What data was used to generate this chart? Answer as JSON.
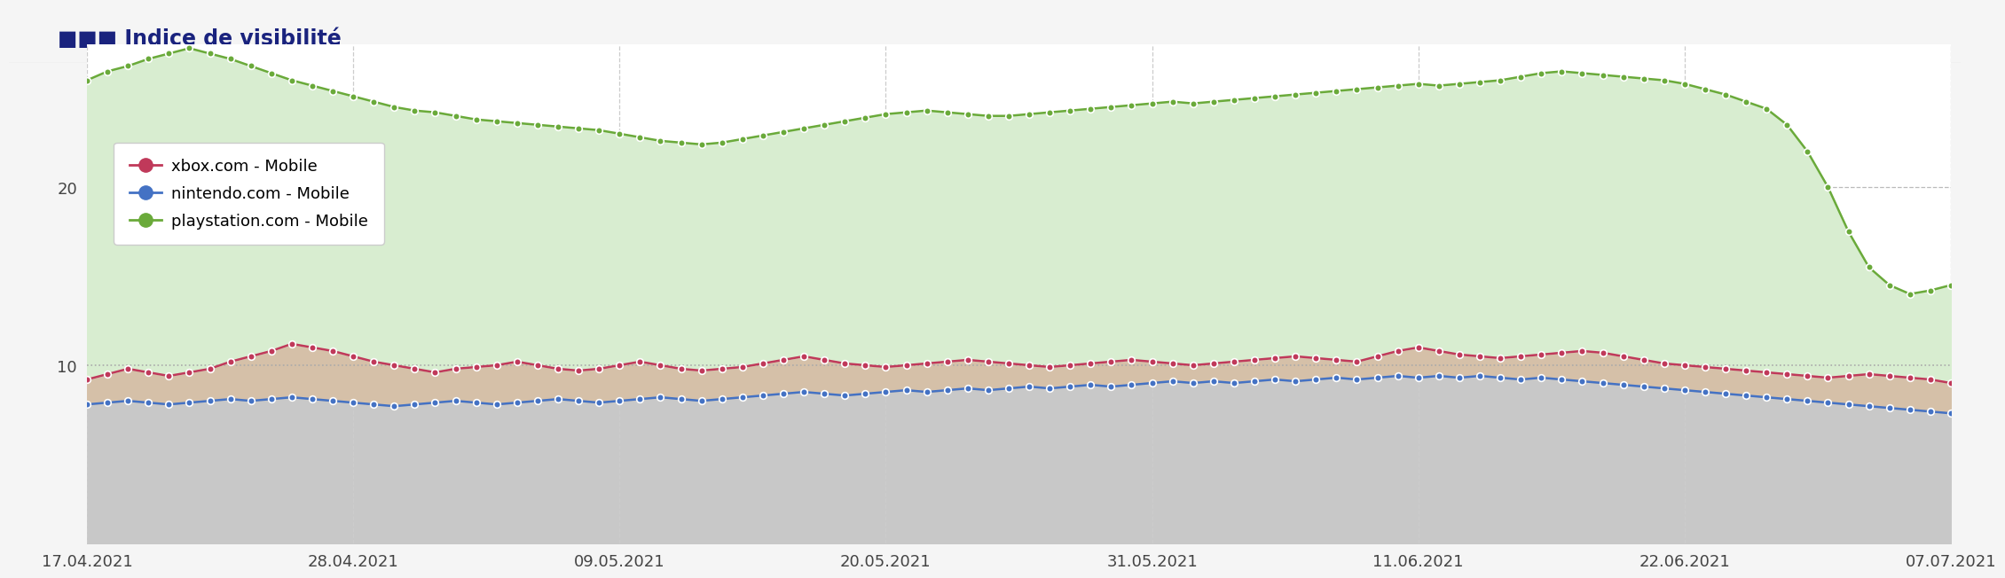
{
  "title": "Indice de visibilité",
  "legend": [
    "xbox.com - Mobile",
    "nintendo.com - Mobile",
    "playstation.com - Mobile"
  ],
  "colors": {
    "xbox": "#c0395a",
    "nintendo": "#4472c4",
    "playstation": "#6aaa3a"
  },
  "x_labels": [
    "17.04.2021",
    "28.04.2021",
    "09.05.2021",
    "20.05.2021",
    "31.05.2021",
    "11.06.2021",
    "22.06.2021",
    "07.07.2021"
  ],
  "yticks": [
    10,
    20
  ],
  "ylim": [
    0,
    28
  ],
  "playstation": [
    26.0,
    26.5,
    26.8,
    27.2,
    27.5,
    27.8,
    27.5,
    27.2,
    26.8,
    26.4,
    26.0,
    25.7,
    25.4,
    25.1,
    24.8,
    24.5,
    24.3,
    24.2,
    24.0,
    23.8,
    23.7,
    23.6,
    23.5,
    23.4,
    23.3,
    23.2,
    23.0,
    22.8,
    22.6,
    22.5,
    22.4,
    22.5,
    22.7,
    22.9,
    23.1,
    23.3,
    23.5,
    23.7,
    23.9,
    24.1,
    24.2,
    24.3,
    24.2,
    24.1,
    24.0,
    24.0,
    24.1,
    24.2,
    24.3,
    24.4,
    24.5,
    24.6,
    24.7,
    24.8,
    24.7,
    24.8,
    24.9,
    25.0,
    25.1,
    25.2,
    25.3,
    25.4,
    25.5,
    25.6,
    25.7,
    25.8,
    25.7,
    25.8,
    25.9,
    26.0,
    26.2,
    26.4,
    26.5,
    26.4,
    26.3,
    26.2,
    26.1,
    26.0,
    25.8,
    25.5,
    25.2,
    24.8,
    24.4,
    23.5,
    22.0,
    20.0,
    17.5,
    15.5,
    14.5,
    14.0,
    14.2,
    14.5
  ],
  "xbox": [
    9.2,
    9.5,
    9.8,
    9.6,
    9.4,
    9.6,
    9.8,
    10.2,
    10.5,
    10.8,
    11.2,
    11.0,
    10.8,
    10.5,
    10.2,
    10.0,
    9.8,
    9.6,
    9.8,
    9.9,
    10.0,
    10.2,
    10.0,
    9.8,
    9.7,
    9.8,
    10.0,
    10.2,
    10.0,
    9.8,
    9.7,
    9.8,
    9.9,
    10.1,
    10.3,
    10.5,
    10.3,
    10.1,
    10.0,
    9.9,
    10.0,
    10.1,
    10.2,
    10.3,
    10.2,
    10.1,
    10.0,
    9.9,
    10.0,
    10.1,
    10.2,
    10.3,
    10.2,
    10.1,
    10.0,
    10.1,
    10.2,
    10.3,
    10.4,
    10.5,
    10.4,
    10.3,
    10.2,
    10.5,
    10.8,
    11.0,
    10.8,
    10.6,
    10.5,
    10.4,
    10.5,
    10.6,
    10.7,
    10.8,
    10.7,
    10.5,
    10.3,
    10.1,
    10.0,
    9.9,
    9.8,
    9.7,
    9.6,
    9.5,
    9.4,
    9.3,
    9.4,
    9.5,
    9.4,
    9.3,
    9.2,
    9.0
  ],
  "nintendo": [
    7.8,
    7.9,
    8.0,
    7.9,
    7.8,
    7.9,
    8.0,
    8.1,
    8.0,
    8.1,
    8.2,
    8.1,
    8.0,
    7.9,
    7.8,
    7.7,
    7.8,
    7.9,
    8.0,
    7.9,
    7.8,
    7.9,
    8.0,
    8.1,
    8.0,
    7.9,
    8.0,
    8.1,
    8.2,
    8.1,
    8.0,
    8.1,
    8.2,
    8.3,
    8.4,
    8.5,
    8.4,
    8.3,
    8.4,
    8.5,
    8.6,
    8.5,
    8.6,
    8.7,
    8.6,
    8.7,
    8.8,
    8.7,
    8.8,
    8.9,
    8.8,
    8.9,
    9.0,
    9.1,
    9.0,
    9.1,
    9.0,
    9.1,
    9.2,
    9.1,
    9.2,
    9.3,
    9.2,
    9.3,
    9.4,
    9.3,
    9.4,
    9.3,
    9.4,
    9.3,
    9.2,
    9.3,
    9.2,
    9.1,
    9.0,
    8.9,
    8.8,
    8.7,
    8.6,
    8.5,
    8.4,
    8.3,
    8.2,
    8.1,
    8.0,
    7.9,
    7.8,
    7.7,
    7.6,
    7.5,
    7.4,
    7.3
  ]
}
